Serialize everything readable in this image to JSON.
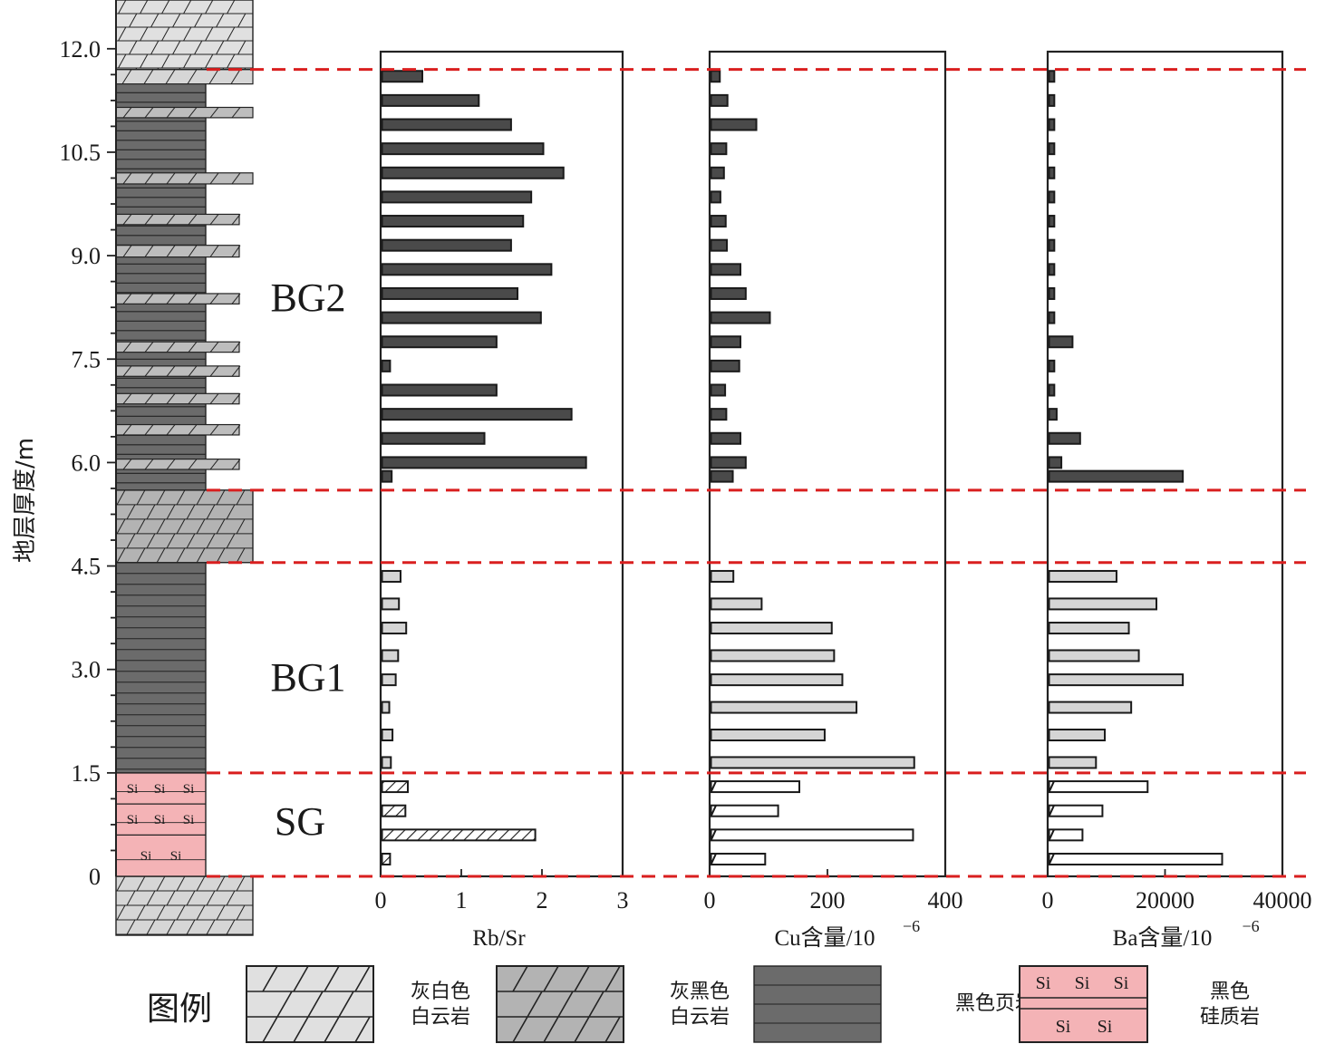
{
  "chart_data": {
    "type": "bar",
    "y_axis": {
      "label": "地层厚度/m",
      "ticks": [
        "0",
        "1.5",
        "3.0",
        "4.5",
        "6.0",
        "7.5",
        "9.0",
        "10.5",
        "12.0"
      ],
      "ylim": [
        0,
        12.6
      ]
    },
    "boundaries": [
      0,
      1.5,
      4.55,
      5.6,
      11.7
    ],
    "groups": [
      {
        "label": "BG2",
        "range": [
          5.6,
          11.7
        ]
      },
      {
        "label": "BG1",
        "range": [
          1.5,
          4.55
        ]
      },
      {
        "label": "SG",
        "range": [
          0,
          1.5
        ]
      }
    ],
    "depths": [
      11.6,
      11.25,
      10.9,
      10.55,
      10.2,
      9.85,
      9.5,
      9.15,
      8.8,
      8.45,
      8.1,
      7.75,
      7.4,
      7.05,
      6.7,
      6.35,
      6.0,
      5.8,
      4.35,
      3.95,
      3.6,
      3.2,
      2.85,
      2.45,
      2.05,
      1.65,
      1.3,
      0.95,
      0.6,
      0.25
    ],
    "panels": [
      {
        "xlabel": "Rb/Sr",
        "unit": "",
        "xlim": [
          0,
          3
        ],
        "ticks": [
          "0",
          "1",
          "2",
          "3"
        ],
        "values": [
          0.5,
          1.2,
          1.6,
          2.0,
          2.25,
          1.85,
          1.75,
          1.6,
          2.1,
          1.68,
          1.97,
          1.42,
          0.1,
          1.42,
          2.35,
          1.27,
          2.53,
          0.12,
          0.23,
          0.21,
          0.3,
          0.2,
          0.17,
          0.09,
          0.13,
          0.11,
          0.32,
          0.29,
          1.9,
          0.1
        ]
      },
      {
        "xlabel": "Cu含量/10",
        "unit": "−6",
        "xlim": [
          0,
          400
        ],
        "ticks": [
          "0",
          "200",
          "400"
        ],
        "values": [
          15,
          28,
          77,
          26,
          22,
          16,
          25,
          27,
          50,
          59,
          100,
          50,
          48,
          24,
          26,
          50,
          59,
          37,
          38,
          86,
          205,
          209,
          223,
          247,
          193,
          345,
          150,
          114,
          343,
          92
        ]
      },
      {
        "xlabel": "Ba含量/10",
        "unit": "−6",
        "xlim": [
          0,
          40000
        ],
        "ticks": [
          "0",
          "20000",
          "40000"
        ],
        "values": [
          900,
          900,
          900,
          900,
          900,
          900,
          900,
          900,
          900,
          900,
          900,
          4000,
          900,
          900,
          1300,
          5300,
          2100,
          22800,
          11500,
          18300,
          13600,
          15300,
          22800,
          14000,
          9500,
          8000,
          16800,
          9100,
          5700,
          29500
        ]
      }
    ],
    "series_colors": {
      "BG2": "#4a4a4a",
      "BG1": "#d5d5d5",
      "SG": "#ffffff"
    },
    "boundary_color": "#d91f1f"
  },
  "legend": {
    "title": "图例",
    "items": [
      {
        "lines": [
          "灰白色",
          "白云岩"
        ],
        "symbol": "light-dolomite",
        "color": "#e0e0e0"
      },
      {
        "lines": [
          "灰黑色",
          "白云岩"
        ],
        "symbol": "dark-dolomite",
        "color": "#b3b3b3"
      },
      {
        "lines": [
          "黑色页岩"
        ],
        "symbol": "black-shale",
        "color": "#6b6b6b"
      },
      {
        "lines": [
          "黑色",
          "硅质岩"
        ],
        "symbol": "siliceous-rock",
        "color": "#f4b3b6",
        "mark": "Si"
      }
    ]
  }
}
